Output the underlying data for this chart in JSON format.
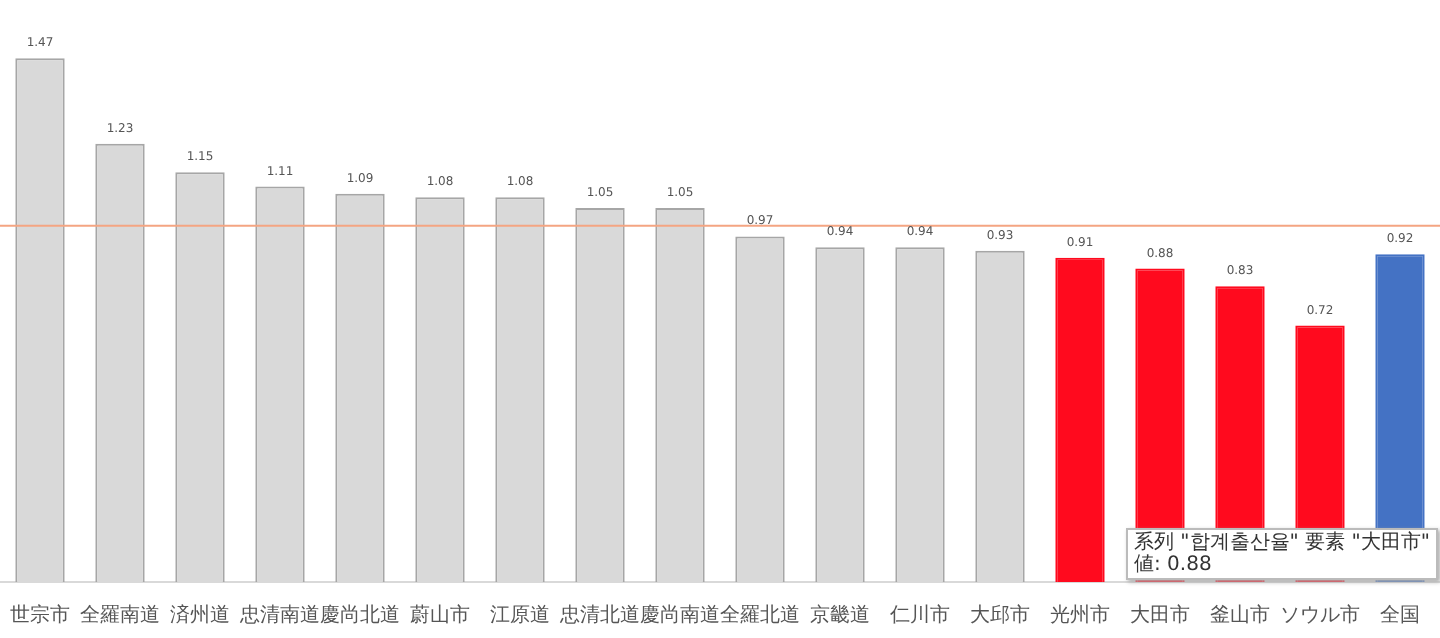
{
  "chart_data": {
    "type": "bar",
    "categories": [
      "世宗市",
      "全羅南道",
      "済州道",
      "忠清南道",
      "慶尚北道",
      "蔚山市",
      "江原道",
      "忠清北道",
      "慶尚南道",
      "全羅北道",
      "京畿道",
      "仁川市",
      "大邱市",
      "光州市",
      "大田市",
      "釜山市",
      "ソウル市",
      "全国"
    ],
    "values": [
      1.47,
      1.23,
      1.15,
      1.11,
      1.09,
      1.08,
      1.08,
      1.05,
      1.05,
      0.97,
      0.94,
      0.94,
      0.93,
      0.91,
      0.88,
      0.83,
      0.72,
      0.92
    ],
    "colors": [
      "#d9d9d9",
      "#d9d9d9",
      "#d9d9d9",
      "#d9d9d9",
      "#d9d9d9",
      "#d9d9d9",
      "#d9d9d9",
      "#d9d9d9",
      "#d9d9d9",
      "#d9d9d9",
      "#d9d9d9",
      "#d9d9d9",
      "#d9d9d9",
      "#ff0a1e",
      "#ff0a1e",
      "#ff0a1e",
      "#ff0a1e",
      "#4472c4"
    ],
    "data_labels": true,
    "grid": false,
    "legend": false,
    "ref_lines": [
      {
        "axis": "y",
        "value": 1.0,
        "color": "#f4a582"
      }
    ],
    "annotations": [
      "系列 \"합계출산율\" 要素 \"大田市\"\n値: 0.88"
    ]
  }
}
